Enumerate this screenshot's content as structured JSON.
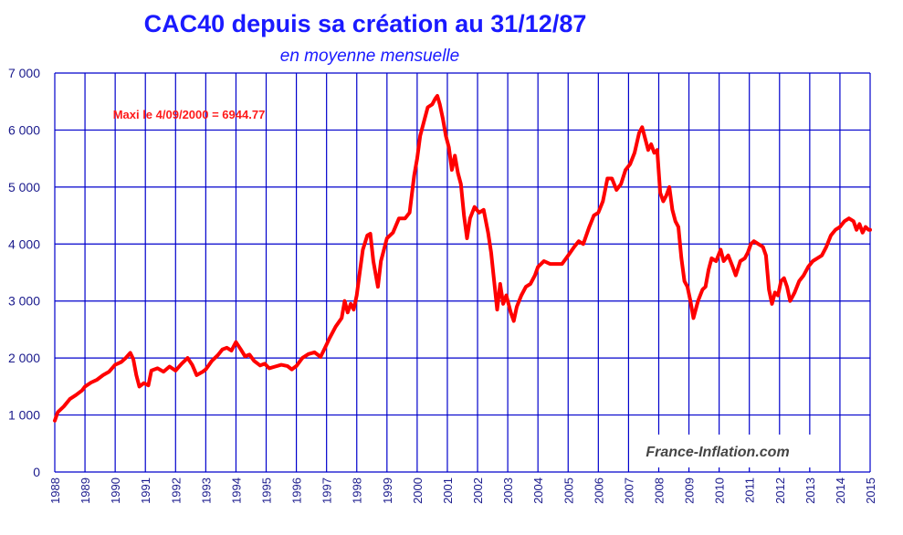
{
  "chart_data": {
    "type": "line",
    "title": "CAC40 depuis sa création au 31/12/87",
    "subtitle": "en moyenne mensuelle",
    "annotation": "Maxi le 4/09/2000 = 6944.77",
    "watermark": "France-Inflation.com",
    "xlim": [
      1988,
      2015
    ],
    "ylim": [
      0,
      7000
    ],
    "x_ticks": [
      "1988",
      "1989",
      "1990",
      "1991",
      "1992",
      "1993",
      "1994",
      "1995",
      "1996",
      "1997",
      "1998",
      "1999",
      "2000",
      "2001",
      "2002",
      "2003",
      "2004",
      "2005",
      "2006",
      "2007",
      "2008",
      "2009",
      "2010",
      "2011",
      "2012",
      "2013",
      "2014",
      "2015"
    ],
    "y_ticks": [
      "0",
      "1 000",
      "2 000",
      "3 000",
      "4 000",
      "5 000",
      "6 000",
      "7 000"
    ],
    "grid": true,
    "series": [
      {
        "color": "#ff0000",
        "points": [
          [
            1988.0,
            900
          ],
          [
            1988.1,
            1050
          ],
          [
            1988.3,
            1150
          ],
          [
            1988.5,
            1280
          ],
          [
            1988.7,
            1350
          ],
          [
            1988.9,
            1430
          ],
          [
            1989.0,
            1500
          ],
          [
            1989.2,
            1570
          ],
          [
            1989.4,
            1620
          ],
          [
            1989.6,
            1700
          ],
          [
            1989.8,
            1760
          ],
          [
            1990.0,
            1880
          ],
          [
            1990.2,
            1930
          ],
          [
            1990.35,
            2000
          ],
          [
            1990.5,
            2090
          ],
          [
            1990.6,
            1980
          ],
          [
            1990.7,
            1700
          ],
          [
            1990.8,
            1500
          ],
          [
            1990.95,
            1560
          ],
          [
            1991.1,
            1520
          ],
          [
            1991.2,
            1780
          ],
          [
            1991.4,
            1820
          ],
          [
            1991.6,
            1760
          ],
          [
            1991.8,
            1850
          ],
          [
            1992.0,
            1780
          ],
          [
            1992.2,
            1900
          ],
          [
            1992.4,
            2000
          ],
          [
            1992.55,
            1880
          ],
          [
            1992.7,
            1700
          ],
          [
            1992.9,
            1760
          ],
          [
            1993.0,
            1800
          ],
          [
            1993.2,
            1950
          ],
          [
            1993.4,
            2050
          ],
          [
            1993.55,
            2150
          ],
          [
            1993.7,
            2180
          ],
          [
            1993.85,
            2130
          ],
          [
            1994.0,
            2280
          ],
          [
            1994.15,
            2160
          ],
          [
            1994.3,
            2030
          ],
          [
            1994.45,
            2060
          ],
          [
            1994.6,
            1950
          ],
          [
            1994.8,
            1870
          ],
          [
            1994.95,
            1900
          ],
          [
            1995.1,
            1820
          ],
          [
            1995.3,
            1850
          ],
          [
            1995.5,
            1880
          ],
          [
            1995.7,
            1860
          ],
          [
            1995.85,
            1800
          ],
          [
            1996.0,
            1860
          ],
          [
            1996.2,
            2000
          ],
          [
            1996.4,
            2070
          ],
          [
            1996.6,
            2100
          ],
          [
            1996.8,
            2020
          ],
          [
            1996.95,
            2180
          ],
          [
            1997.1,
            2350
          ],
          [
            1997.3,
            2550
          ],
          [
            1997.5,
            2700
          ],
          [
            1997.6,
            3000
          ],
          [
            1997.7,
            2800
          ],
          [
            1997.8,
            2950
          ],
          [
            1997.9,
            2850
          ],
          [
            1998.0,
            3100
          ],
          [
            1998.1,
            3500
          ],
          [
            1998.2,
            3900
          ],
          [
            1998.35,
            4150
          ],
          [
            1998.45,
            4180
          ],
          [
            1998.55,
            3700
          ],
          [
            1998.7,
            3250
          ],
          [
            1998.8,
            3700
          ],
          [
            1998.9,
            3900
          ],
          [
            1999.0,
            4100
          ],
          [
            1999.2,
            4200
          ],
          [
            1999.4,
            4450
          ],
          [
            1999.6,
            4450
          ],
          [
            1999.75,
            4550
          ],
          [
            1999.9,
            5200
          ],
          [
            2000.0,
            5500
          ],
          [
            2000.1,
            5900
          ],
          [
            2000.2,
            6100
          ],
          [
            2000.35,
            6400
          ],
          [
            2000.5,
            6450
          ],
          [
            2000.6,
            6550
          ],
          [
            2000.67,
            6600
          ],
          [
            2000.75,
            6450
          ],
          [
            2000.85,
            6200
          ],
          [
            2000.95,
            5900
          ],
          [
            2001.05,
            5700
          ],
          [
            2001.15,
            5300
          ],
          [
            2001.25,
            5550
          ],
          [
            2001.35,
            5250
          ],
          [
            2001.45,
            5050
          ],
          [
            2001.55,
            4500
          ],
          [
            2001.65,
            4100
          ],
          [
            2001.75,
            4450
          ],
          [
            2001.9,
            4650
          ],
          [
            2002.05,
            4550
          ],
          [
            2002.2,
            4600
          ],
          [
            2002.35,
            4200
          ],
          [
            2002.45,
            3850
          ],
          [
            2002.55,
            3350
          ],
          [
            2002.65,
            2850
          ],
          [
            2002.75,
            3300
          ],
          [
            2002.85,
            2950
          ],
          [
            2002.95,
            3100
          ],
          [
            2003.1,
            2800
          ],
          [
            2003.2,
            2650
          ],
          [
            2003.3,
            2900
          ],
          [
            2003.45,
            3100
          ],
          [
            2003.6,
            3250
          ],
          [
            2003.75,
            3300
          ],
          [
            2003.9,
            3450
          ],
          [
            2004.0,
            3600
          ],
          [
            2004.2,
            3700
          ],
          [
            2004.4,
            3650
          ],
          [
            2004.6,
            3650
          ],
          [
            2004.8,
            3650
          ],
          [
            2005.0,
            3800
          ],
          [
            2005.2,
            3950
          ],
          [
            2005.35,
            4050
          ],
          [
            2005.5,
            4000
          ],
          [
            2005.7,
            4300
          ],
          [
            2005.85,
            4500
          ],
          [
            2006.0,
            4550
          ],
          [
            2006.15,
            4750
          ],
          [
            2006.3,
            5150
          ],
          [
            2006.45,
            5150
          ],
          [
            2006.6,
            4950
          ],
          [
            2006.75,
            5050
          ],
          [
            2006.9,
            5300
          ],
          [
            2007.05,
            5400
          ],
          [
            2007.2,
            5600
          ],
          [
            2007.35,
            5950
          ],
          [
            2007.45,
            6050
          ],
          [
            2007.55,
            5850
          ],
          [
            2007.65,
            5650
          ],
          [
            2007.75,
            5750
          ],
          [
            2007.85,
            5600
          ],
          [
            2007.95,
            5650
          ],
          [
            2008.05,
            4900
          ],
          [
            2008.15,
            4750
          ],
          [
            2008.25,
            4850
          ],
          [
            2008.35,
            5000
          ],
          [
            2008.45,
            4600
          ],
          [
            2008.55,
            4400
          ],
          [
            2008.65,
            4300
          ],
          [
            2008.75,
            3750
          ],
          [
            2008.85,
            3350
          ],
          [
            2008.95,
            3250
          ],
          [
            2009.05,
            3000
          ],
          [
            2009.15,
            2700
          ],
          [
            2009.3,
            3000
          ],
          [
            2009.45,
            3200
          ],
          [
            2009.55,
            3250
          ],
          [
            2009.65,
            3550
          ],
          [
            2009.75,
            3750
          ],
          [
            2009.9,
            3700
          ],
          [
            2010.05,
            3900
          ],
          [
            2010.15,
            3700
          ],
          [
            2010.3,
            3800
          ],
          [
            2010.45,
            3600
          ],
          [
            2010.55,
            3450
          ],
          [
            2010.7,
            3700
          ],
          [
            2010.85,
            3750
          ],
          [
            2010.95,
            3850
          ],
          [
            2011.05,
            4000
          ],
          [
            2011.15,
            4050
          ],
          [
            2011.3,
            4000
          ],
          [
            2011.45,
            3950
          ],
          [
            2011.55,
            3800
          ],
          [
            2011.65,
            3200
          ],
          [
            2011.75,
            2950
          ],
          [
            2011.85,
            3150
          ],
          [
            2011.95,
            3100
          ],
          [
            2012.05,
            3350
          ],
          [
            2012.15,
            3400
          ],
          [
            2012.25,
            3250
          ],
          [
            2012.35,
            3000
          ],
          [
            2012.5,
            3150
          ],
          [
            2012.65,
            3350
          ],
          [
            2012.8,
            3450
          ],
          [
            2012.95,
            3600
          ],
          [
            2013.1,
            3700
          ],
          [
            2013.25,
            3750
          ],
          [
            2013.4,
            3800
          ],
          [
            2013.55,
            3950
          ],
          [
            2013.7,
            4150
          ],
          [
            2013.85,
            4250
          ],
          [
            2014.0,
            4300
          ],
          [
            2014.15,
            4400
          ],
          [
            2014.3,
            4450
          ],
          [
            2014.45,
            4400
          ],
          [
            2014.55,
            4250
          ],
          [
            2014.65,
            4350
          ],
          [
            2014.75,
            4200
          ],
          [
            2014.85,
            4300
          ],
          [
            2014.95,
            4250
          ],
          [
            2015.0,
            4250
          ]
        ]
      }
    ]
  }
}
